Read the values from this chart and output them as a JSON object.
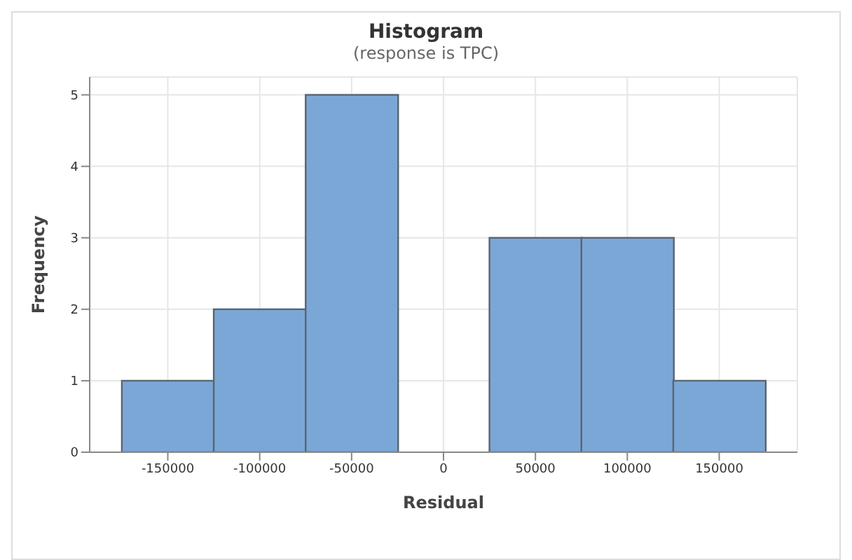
{
  "chart_data": {
    "type": "histogram",
    "title": "Histogram",
    "subtitle": "(response is TPC)",
    "xlabel": "Residual",
    "ylabel": "Frequency",
    "bins": [
      -175000,
      -125000,
      -75000,
      -25000,
      25000,
      75000,
      125000,
      175000
    ],
    "values": [
      1,
      2,
      5,
      0,
      3,
      3,
      1
    ],
    "color": "#7ba7d7",
    "xlim": [
      -192500,
      192500
    ],
    "xticks": [
      -150000,
      -100000,
      -50000,
      0,
      50000,
      100000,
      150000
    ],
    "ylim": [
      0,
      5.25
    ],
    "yticks": [
      0,
      1,
      2,
      3,
      4,
      5
    ],
    "grid": true
  }
}
